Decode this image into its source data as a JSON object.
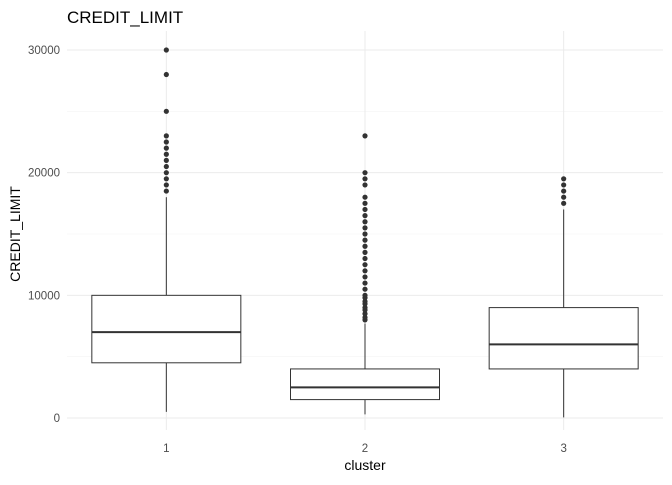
{
  "chart_data": {
    "type": "boxplot",
    "title": "CREDIT_LIMIT",
    "xlabel": "cluster",
    "ylabel": "CREDIT_LIMIT",
    "categories": [
      "1",
      "2",
      "3"
    ],
    "ylim": [
      0,
      31500
    ],
    "yticks": [
      0,
      10000,
      20000,
      30000
    ],
    "ytick_labels": [
      "0",
      "10000",
      "20000",
      "30000"
    ],
    "grid": true,
    "boxes": [
      {
        "category": "1",
        "min": 500,
        "q1": 4500,
        "median": 7000,
        "q3": 10000,
        "max": 18000,
        "outliers": [
          18500,
          19000,
          19500,
          20000,
          20500,
          21000,
          21500,
          22000,
          22500,
          23000,
          25000,
          28000,
          30000
        ]
      },
      {
        "category": "2",
        "min": 300,
        "q1": 1500,
        "median": 2500,
        "q3": 4000,
        "max": 7700,
        "outliers": [
          8000,
          8200,
          8500,
          8800,
          9000,
          9300,
          9500,
          9800,
          10000,
          10500,
          11000,
          11500,
          12000,
          12500,
          13000,
          13500,
          14000,
          14500,
          15000,
          15500,
          16000,
          16500,
          17000,
          17500,
          18000,
          19000,
          19500,
          20000,
          23000
        ]
      },
      {
        "category": "3",
        "min": 50,
        "q1": 4000,
        "median": 6000,
        "q3": 9000,
        "max": 17000,
        "outliers": [
          17500,
          18000,
          18500,
          19000,
          19500
        ]
      }
    ]
  }
}
